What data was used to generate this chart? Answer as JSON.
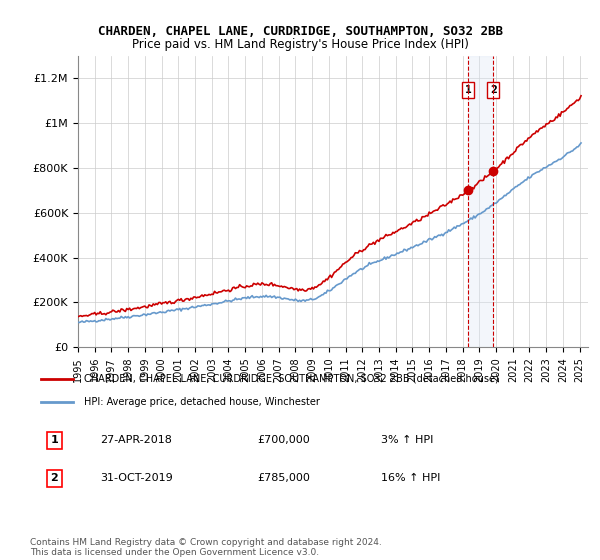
{
  "title": "CHARDEN, CHAPEL LANE, CURDRIDGE, SOUTHAMPTON, SO32 2BB",
  "subtitle": "Price paid vs. HM Land Registry's House Price Index (HPI)",
  "ylim": [
    0,
    1300000
  ],
  "yticks": [
    0,
    200000,
    400000,
    600000,
    800000,
    1000000,
    1200000
  ],
  "ytick_labels": [
    "£0",
    "£200K",
    "£400K",
    "£600K",
    "£800K",
    "£1M",
    "£1.2M"
  ],
  "sale1_date": 2018.32,
  "sale1_price": 700000,
  "sale1_label": "1",
  "sale1_text": "27-APR-2018    £700,000    3% ↑ HPI",
  "sale2_date": 2019.83,
  "sale2_price": 785000,
  "sale2_label": "2",
  "sale2_text": "31-OCT-2019    £785,000    16% ↑ HPI",
  "legend_red": "CHARDEN, CHAPEL LANE, CURDRIDGE, SOUTHAMPTON, SO32 2BB (detached house)",
  "legend_blue": "HPI: Average price, detached house, Winchester",
  "footer": "Contains HM Land Registry data © Crown copyright and database right 2024.\nThis data is licensed under the Open Government Licence v3.0.",
  "line_color_red": "#cc0000",
  "line_color_blue": "#6699cc",
  "highlight_box_color": "#dde8f5",
  "sale_marker_color": "#cc0000",
  "dashed_line_color": "#cc0000",
  "background_color": "#ffffff",
  "grid_color": "#cccccc"
}
